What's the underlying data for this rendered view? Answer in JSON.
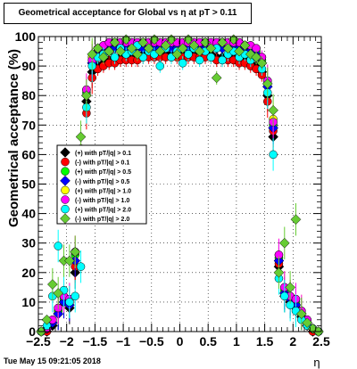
{
  "title": "Geometrical acceptance for Global vs η at pT > 0.11",
  "footer_timestamp": "Tue May 15 09:21:05 2018",
  "chart_data": {
    "type": "scatter",
    "title": "Geometrical acceptance for Global vs η at pT > 0.11",
    "xlabel": "η",
    "ylabel": "Geometrical acceptance (%)",
    "xlim": [
      -2.5,
      2.5
    ],
    "ylim": [
      0,
      100
    ],
    "xticks": [
      -2.5,
      -2,
      -1.5,
      -1,
      -0.5,
      0,
      0.5,
      1,
      1.5,
      2,
      2.5
    ],
    "xtick_labels": [
      "−2.5",
      "−2",
      "−1.5",
      "−1",
      "−0.5",
      "0",
      "0.5",
      "1",
      "1.5",
      "2",
      "2.5"
    ],
    "yticks": [
      0,
      10,
      20,
      30,
      40,
      50,
      60,
      70,
      80,
      90,
      100
    ],
    "ytick_labels": [
      "0",
      "10",
      "20",
      "30",
      "40",
      "50",
      "60",
      "70",
      "80",
      "90",
      "100"
    ],
    "grid": true,
    "legend_position": "left",
    "x": [
      -2.45,
      -2.35,
      -2.25,
      -2.15,
      -2.05,
      -1.95,
      -1.85,
      -1.75,
      -1.65,
      -1.55,
      -1.45,
      -1.35,
      -1.25,
      -1.15,
      -1.05,
      -0.95,
      -0.85,
      -0.75,
      -0.65,
      -0.55,
      -0.45,
      -0.35,
      -0.25,
      -0.15,
      -0.05,
      0.05,
      0.15,
      0.25,
      0.35,
      0.45,
      0.55,
      0.65,
      0.75,
      0.85,
      0.95,
      1.05,
      1.15,
      1.25,
      1.35,
      1.45,
      1.55,
      1.65,
      1.75,
      1.85,
      1.95,
      2.05,
      2.15,
      2.25,
      2.35,
      2.45
    ],
    "series": [
      {
        "name": "(+) with pT/|q| > 0.1",
        "color": "#000000",
        "marker": "diamond",
        "values": [
          0,
          0,
          2,
          6,
          10,
          8,
          20,
          55,
          78,
          88,
          90,
          91,
          92,
          92,
          93,
          93,
          93,
          93,
          94,
          94,
          94,
          94,
          94,
          94,
          94,
          94,
          94,
          94,
          94,
          94,
          94,
          93,
          93,
          93,
          93,
          92,
          92,
          91,
          90,
          88,
          80,
          66,
          22,
          12,
          10,
          8,
          5,
          2,
          0,
          0
        ]
      },
      {
        "name": "(-) with pT/|q| > 0.1",
        "color": "#ff0000",
        "marker": "circle",
        "values": [
          0,
          0,
          3,
          7,
          10,
          9,
          22,
          58,
          74,
          86,
          89,
          90,
          91,
          91,
          92,
          92,
          92,
          92,
          93,
          93,
          93,
          93,
          93,
          93,
          93,
          93,
          93,
          93,
          93,
          93,
          93,
          92,
          92,
          92,
          92,
          91,
          91,
          90,
          89,
          87,
          78,
          68,
          23,
          13,
          11,
          9,
          6,
          3,
          0,
          0
        ]
      },
      {
        "name": "(+) with pT/|q| > 0.5",
        "color": "#00ff00",
        "marker": "circle",
        "values": [
          0,
          1,
          3,
          7,
          11,
          10,
          26,
          60,
          81,
          92,
          95,
          96,
          97,
          97,
          97,
          97,
          97,
          97,
          97,
          97,
          97,
          97,
          97,
          97,
          97,
          97,
          97,
          97,
          97,
          97,
          97,
          97,
          97,
          97,
          97,
          97,
          96,
          96,
          95,
          92,
          84,
          70,
          25,
          14,
          12,
          10,
          6,
          3,
          1,
          0
        ]
      },
      {
        "name": "(-) with pT/|q| > 0.5",
        "color": "#0000ff",
        "marker": "diamond",
        "values": [
          0,
          1,
          3,
          6,
          10,
          9,
          24,
          59,
          80,
          91,
          94,
          95,
          96,
          96,
          96,
          96,
          96,
          96,
          96,
          96,
          96,
          96,
          96,
          96,
          96,
          96,
          96,
          96,
          96,
          96,
          96,
          96,
          96,
          96,
          96,
          96,
          95,
          95,
          94,
          91,
          83,
          69,
          24,
          13,
          11,
          9,
          6,
          3,
          1,
          0
        ]
      },
      {
        "name": "(+) with pT/|q| > 1.0",
        "color": "#ffff00",
        "marker": "circle",
        "values": [
          0,
          1,
          4,
          8,
          12,
          11,
          27,
          62,
          82,
          93,
          96,
          97,
          98,
          98,
          98,
          98,
          98,
          98,
          98,
          98,
          98,
          98,
          98,
          98,
          98,
          98,
          98,
          98,
          98,
          98,
          98,
          98,
          98,
          98,
          98,
          98,
          97,
          97,
          96,
          93,
          85,
          72,
          26,
          15,
          12,
          11,
          7,
          4,
          1,
          0
        ]
      },
      {
        "name": "(-) with pT/|q| > 1.0",
        "color": "#ff00ff",
        "marker": "circle",
        "values": [
          0,
          1,
          4,
          8,
          12,
          11,
          27,
          61,
          82,
          92,
          96,
          97,
          98,
          98,
          98,
          98,
          98,
          98,
          98,
          98,
          98,
          98,
          98,
          98,
          98,
          98,
          98,
          98,
          98,
          98,
          98,
          98,
          98,
          98,
          98,
          98,
          97,
          97,
          96,
          93,
          85,
          71,
          26,
          15,
          12,
          11,
          7,
          4,
          1,
          0
        ]
      },
      {
        "name": "(+) with pT/|q| > 2.0",
        "color": "#00ffff",
        "marker": "circle",
        "values": [
          0,
          2,
          12,
          29,
          14,
          10,
          12,
          22,
          76,
          90,
          93,
          94,
          95,
          93,
          96,
          94,
          95,
          97,
          93,
          95,
          94,
          90,
          96,
          93,
          95,
          91,
          94,
          96,
          92,
          95,
          93,
          96,
          92,
          94,
          95,
          93,
          94,
          92,
          93,
          89,
          81,
          60,
          18,
          12,
          9,
          7,
          4,
          2,
          1,
          0
        ]
      },
      {
        "name": "(-) with pT/|q| > 2.0",
        "color": "#66cc33",
        "marker": "diamond",
        "values": [
          0,
          4,
          16,
          13,
          24,
          24,
          27,
          66,
          80,
          94,
          96,
          93,
          95,
          98,
          95,
          99,
          96,
          94,
          98,
          96,
          99,
          95,
          97,
          99,
          94,
          96,
          99,
          97,
          95,
          98,
          96,
          86,
          98,
          96,
          99,
          95,
          97,
          94,
          93,
          91,
          84,
          75,
          20,
          30,
          15,
          38,
          6,
          3,
          1,
          0
        ]
      }
    ]
  }
}
